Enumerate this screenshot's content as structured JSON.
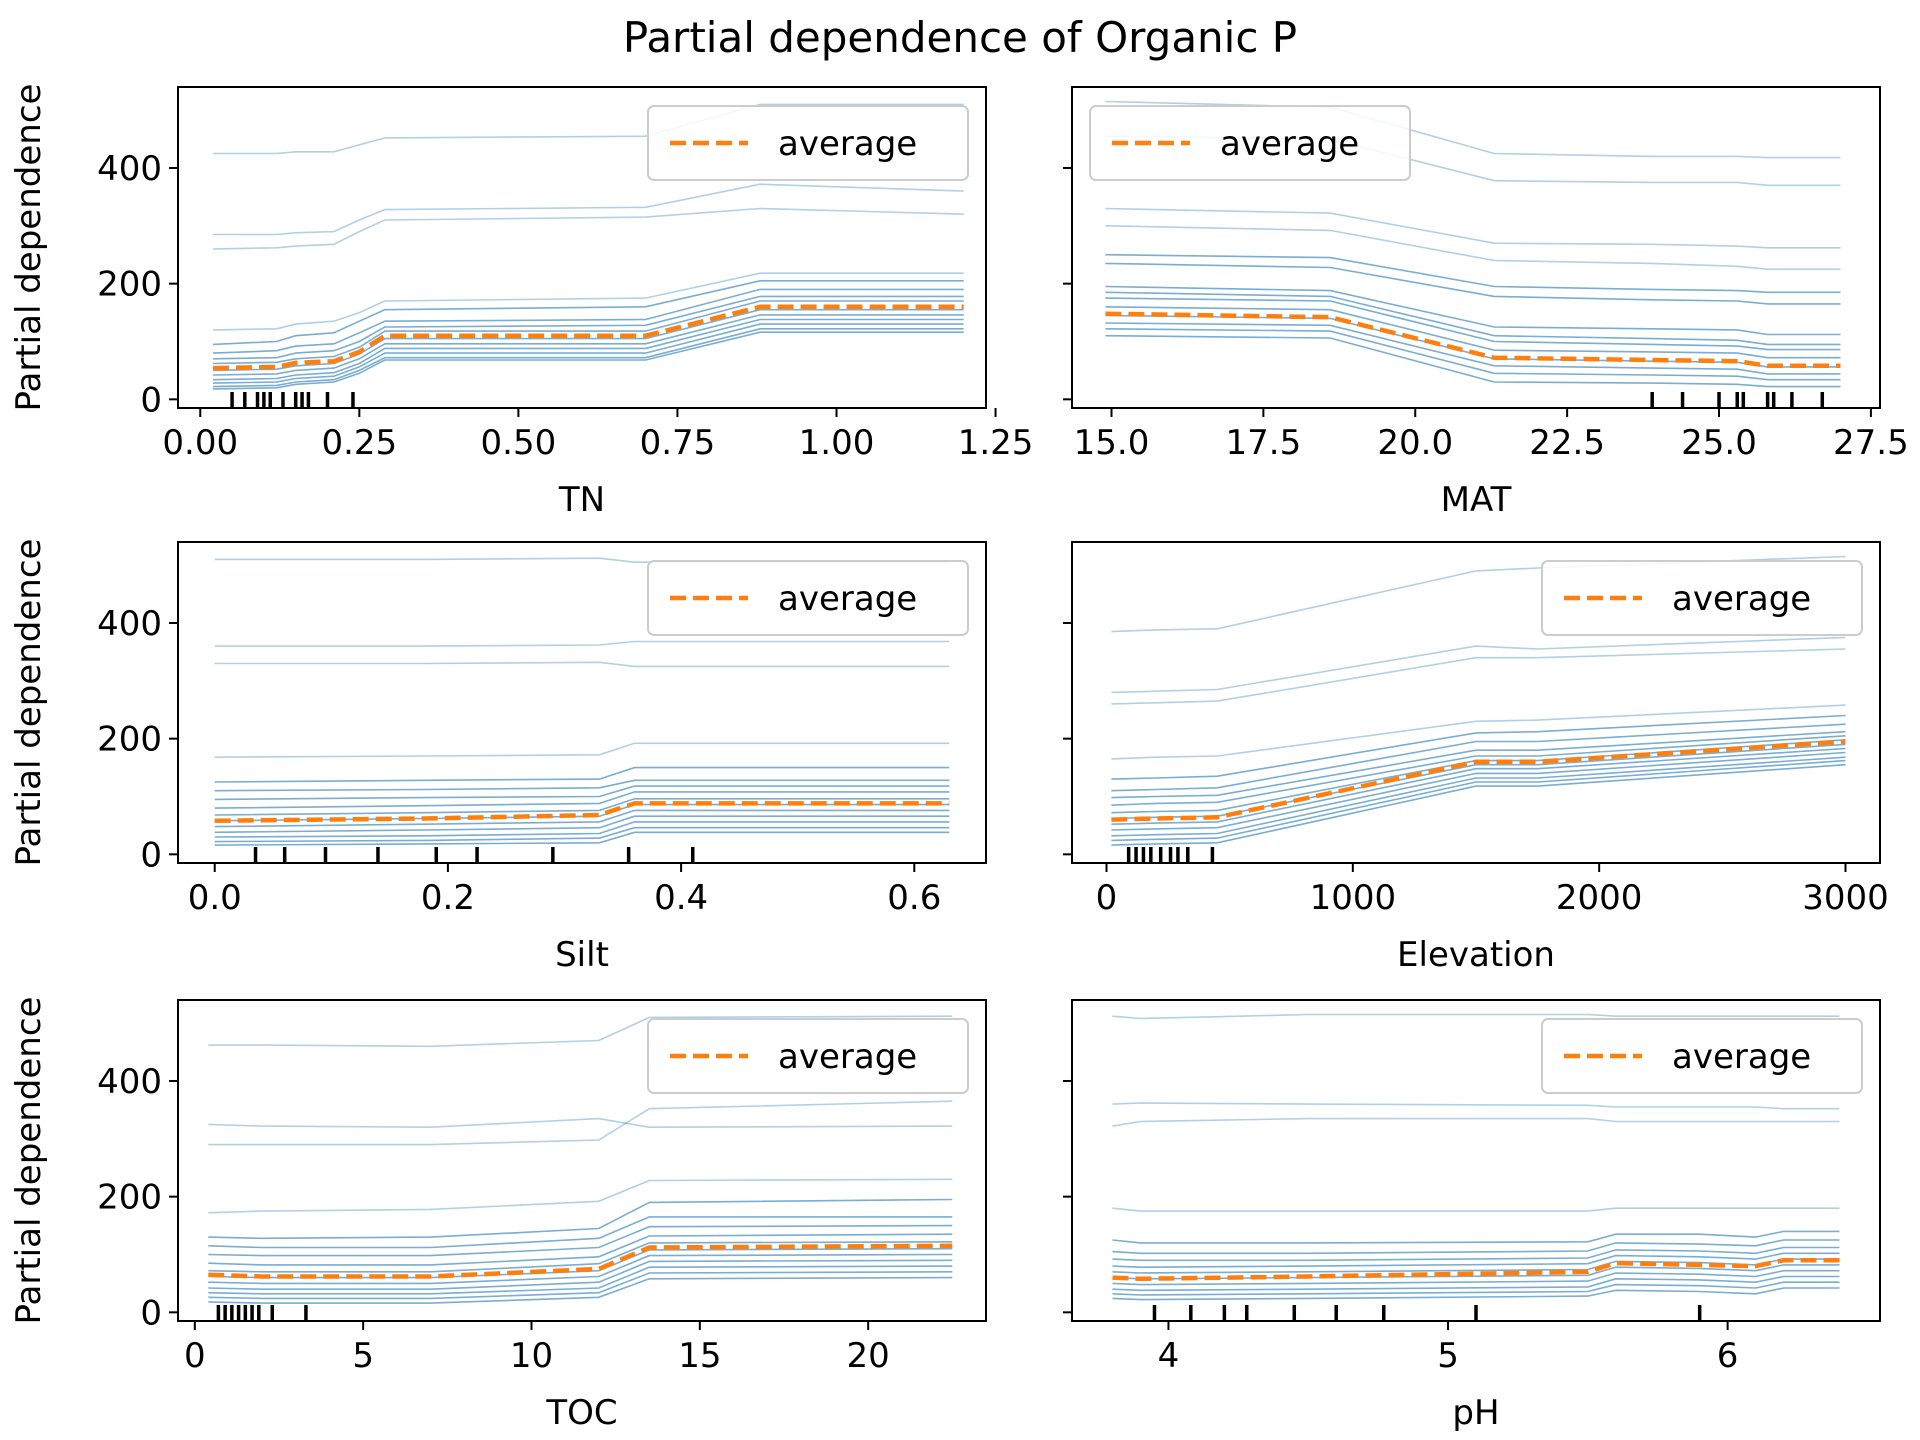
{
  "title": "Partial dependence of Organic P",
  "colors": {
    "ice": "#1f77b4",
    "average": "#ff7f0e",
    "rug": "#000000",
    "axes": "#000000"
  },
  "chart_data": [
    {
      "type": "line",
      "xlabel": "TN",
      "ylabel": "Partial dependence",
      "xlim": [
        -0.035,
        1.235
      ],
      "ylim": [
        -15,
        540
      ],
      "xticks": [
        0.0,
        0.25,
        0.5,
        0.75,
        1.0,
        1.25
      ],
      "xtick_labels": [
        "0.00",
        "0.25",
        "0.50",
        "0.75",
        "1.00",
        "1.25"
      ],
      "yticks": [
        0,
        200,
        400
      ],
      "ytick_labels": [
        "0",
        "200",
        "400"
      ],
      "legend": {
        "label": "average",
        "loc": "upper right"
      },
      "x": [
        0.02,
        0.12,
        0.15,
        0.21,
        0.25,
        0.29,
        0.7,
        0.88,
        1.2
      ],
      "average": [
        54,
        56,
        63,
        66,
        82,
        110,
        110,
        160,
        160
      ],
      "ice_lines": [
        [
          425,
          425,
          428,
          428,
          440,
          452,
          455,
          510,
          510
        ],
        [
          285,
          285,
          288,
          290,
          310,
          328,
          332,
          372,
          360
        ],
        [
          260,
          262,
          265,
          268,
          290,
          310,
          315,
          330,
          320
        ],
        [
          120,
          122,
          130,
          135,
          150,
          170,
          175,
          218,
          218
        ],
        [
          95,
          100,
          110,
          115,
          135,
          155,
          160,
          205,
          205
        ],
        [
          80,
          84,
          92,
          96,
          115,
          135,
          138,
          190,
          190
        ],
        [
          70,
          72,
          80,
          84,
          100,
          125,
          128,
          178,
          178
        ],
        [
          62,
          64,
          70,
          74,
          90,
          118,
          118,
          170,
          170
        ],
        [
          50,
          52,
          58,
          62,
          78,
          105,
          105,
          155,
          155
        ],
        [
          42,
          44,
          50,
          54,
          70,
          96,
          96,
          146,
          146
        ],
        [
          34,
          36,
          42,
          46,
          62,
          88,
          88,
          138,
          138
        ],
        [
          28,
          30,
          36,
          40,
          56,
          80,
          80,
          130,
          130
        ],
        [
          22,
          24,
          30,
          34,
          50,
          72,
          72,
          122,
          122
        ],
        [
          18,
          20,
          26,
          30,
          45,
          68,
          68,
          116,
          116
        ]
      ],
      "rug": [
        0.05,
        0.07,
        0.09,
        0.1,
        0.11,
        0.13,
        0.15,
        0.16,
        0.17,
        0.2,
        0.24
      ]
    },
    {
      "type": "line",
      "xlabel": "MAT",
      "ylabel": "",
      "xlim": [
        14.35,
        27.65
      ],
      "ylim": [
        -15,
        540
      ],
      "xticks": [
        15.0,
        17.5,
        20.0,
        22.5,
        25.0,
        27.5
      ],
      "xtick_labels": [
        "15.0",
        "17.5",
        "20.0",
        "22.5",
        "25.0",
        "27.5"
      ],
      "yticks": [
        0,
        200,
        400
      ],
      "ytick_labels": [
        "",
        "",
        ""
      ],
      "legend": {
        "label": "average",
        "loc": "upper left"
      },
      "x": [
        14.9,
        18.6,
        21.3,
        23.9,
        25.3,
        25.8,
        27.0
      ],
      "average": [
        148,
        142,
        72,
        68,
        66,
        58,
        58
      ],
      "ice_lines": [
        [
          515,
          505,
          425,
          420,
          420,
          418,
          418
        ],
        [
          455,
          450,
          378,
          375,
          375,
          370,
          370
        ],
        [
          330,
          322,
          270,
          268,
          265,
          262,
          262
        ],
        [
          300,
          292,
          240,
          235,
          230,
          225,
          225
        ],
        [
          250,
          245,
          195,
          190,
          188,
          185,
          185
        ],
        [
          235,
          228,
          178,
          172,
          170,
          165,
          165
        ],
        [
          195,
          188,
          125,
          122,
          120,
          112,
          112
        ],
        [
          185,
          178,
          110,
          105,
          102,
          95,
          95
        ],
        [
          175,
          170,
          100,
          95,
          92,
          86,
          86
        ],
        [
          160,
          155,
          85,
          82,
          80,
          72,
          72
        ],
        [
          145,
          140,
          70,
          66,
          64,
          56,
          56
        ],
        [
          132,
          128,
          58,
          54,
          52,
          44,
          44
        ],
        [
          122,
          118,
          45,
          42,
          40,
          34,
          34
        ],
        [
          110,
          106,
          30,
          28,
          26,
          22,
          22
        ]
      ],
      "rug": [
        23.9,
        24.4,
        25.0,
        25.3,
        25.4,
        25.8,
        25.9,
        26.2,
        26.7
      ]
    },
    {
      "type": "line",
      "xlabel": "Silt",
      "ylabel": "Partial dependence",
      "xlim": [
        -0.0315,
        0.6615
      ],
      "ylim": [
        -15,
        540
      ],
      "xticks": [
        0.0,
        0.2,
        0.4,
        0.6
      ],
      "xtick_labels": [
        "0.0",
        "0.2",
        "0.4",
        "0.6"
      ],
      "yticks": [
        0,
        200,
        400
      ],
      "ytick_labels": [
        "0",
        "200",
        "400"
      ],
      "legend": {
        "label": "average",
        "loc": "upper right"
      },
      "x": [
        0.0,
        0.18,
        0.33,
        0.36,
        0.63
      ],
      "average": [
        58,
        62,
        68,
        88,
        88
      ],
      "ice_lines": [
        [
          510,
          510,
          512,
          505,
          505
        ],
        [
          360,
          360,
          362,
          368,
          368
        ],
        [
          330,
          330,
          332,
          325,
          325
        ],
        [
          168,
          170,
          172,
          192,
          192
        ],
        [
          125,
          128,
          130,
          150,
          150
        ],
        [
          110,
          112,
          115,
          128,
          128
        ],
        [
          95,
          98,
          100,
          118,
          118
        ],
        [
          80,
          84,
          88,
          108,
          108
        ],
        [
          68,
          72,
          76,
          96,
          96
        ],
        [
          58,
          62,
          66,
          86,
          86
        ],
        [
          48,
          52,
          56,
          76,
          76
        ],
        [
          38,
          42,
          46,
          66,
          66
        ],
        [
          30,
          32,
          36,
          56,
          56
        ],
        [
          22,
          24,
          28,
          46,
          46
        ],
        [
          16,
          18,
          20,
          38,
          38
        ]
      ],
      "rug": [
        0.035,
        0.06,
        0.095,
        0.14,
        0.19,
        0.225,
        0.29,
        0.355,
        0.41
      ]
    },
    {
      "type": "line",
      "xlabel": "Elevation",
      "ylabel": "",
      "xlim": [
        -140,
        3140
      ],
      "ylim": [
        -15,
        540
      ],
      "xticks": [
        0,
        1000,
        2000,
        3000
      ],
      "xtick_labels": [
        "0",
        "1000",
        "2000",
        "3000"
      ],
      "yticks": [
        0,
        200,
        400
      ],
      "ytick_labels": [
        "",
        "",
        ""
      ],
      "legend": {
        "label": "average",
        "loc": "upper right"
      },
      "x": [
        20,
        200,
        450,
        1500,
        1750,
        3000
      ],
      "average": [
        60,
        62,
        64,
        160,
        160,
        195
      ],
      "ice_lines": [
        [
          385,
          388,
          390,
          490,
          495,
          515
        ],
        [
          280,
          282,
          285,
          360,
          355,
          375
        ],
        [
          260,
          262,
          265,
          340,
          340,
          355
        ],
        [
          165,
          168,
          170,
          230,
          232,
          258
        ],
        [
          130,
          132,
          135,
          210,
          212,
          240
        ],
        [
          110,
          112,
          115,
          195,
          195,
          225
        ],
        [
          98,
          100,
          102,
          180,
          180,
          212
        ],
        [
          85,
          88,
          90,
          170,
          170,
          205
        ],
        [
          72,
          74,
          76,
          162,
          162,
          198
        ],
        [
          62,
          64,
          66,
          155,
          155,
          190
        ],
        [
          52,
          54,
          56,
          148,
          148,
          183
        ],
        [
          42,
          44,
          46,
          140,
          140,
          176
        ],
        [
          32,
          34,
          36,
          132,
          132,
          168
        ],
        [
          24,
          26,
          28,
          125,
          125,
          162
        ],
        [
          16,
          18,
          20,
          118,
          118,
          155
        ]
      ],
      "rug": [
        90,
        120,
        150,
        180,
        220,
        260,
        290,
        330,
        430
      ]
    },
    {
      "type": "line",
      "xlabel": "TOC",
      "ylabel": "Partial dependence",
      "xlim": [
        -0.5,
        23.5
      ],
      "ylim": [
        -15,
        540
      ],
      "xticks": [
        0,
        5,
        10,
        15,
        20
      ],
      "xtick_labels": [
        "0",
        "5",
        "10",
        "15",
        "20"
      ],
      "yticks": [
        0,
        200,
        400
      ],
      "ytick_labels": [
        "0",
        "200",
        "400"
      ],
      "legend": {
        "label": "average",
        "loc": "upper right"
      },
      "x": [
        0.4,
        2.0,
        7.0,
        12.0,
        13.5,
        22.5
      ],
      "average": [
        65,
        62,
        62,
        75,
        112,
        115
      ],
      "ice_lines": [
        [
          462,
          462,
          460,
          470,
          510,
          512
        ],
        [
          325,
          322,
          320,
          335,
          320,
          322
        ],
        [
          290,
          290,
          290,
          298,
          352,
          365
        ],
        [
          172,
          175,
          178,
          192,
          228,
          230
        ],
        [
          130,
          128,
          130,
          145,
          190,
          195
        ],
        [
          115,
          112,
          112,
          128,
          165,
          165
        ],
        [
          100,
          98,
          98,
          112,
          148,
          150
        ],
        [
          85,
          82,
          82,
          96,
          132,
          135
        ],
        [
          72,
          70,
          70,
          84,
          120,
          122
        ],
        [
          62,
          60,
          60,
          72,
          108,
          110
        ],
        [
          52,
          50,
          50,
          62,
          98,
          100
        ],
        [
          42,
          40,
          40,
          52,
          88,
          90
        ],
        [
          34,
          32,
          32,
          42,
          78,
          80
        ],
        [
          26,
          24,
          24,
          34,
          68,
          70
        ],
        [
          18,
          16,
          16,
          26,
          58,
          60
        ]
      ],
      "rug": [
        0.7,
        0.9,
        1.1,
        1.3,
        1.5,
        1.7,
        1.9,
        2.3,
        3.3
      ]
    },
    {
      "type": "line",
      "xlabel": "pH",
      "ylabel": "",
      "xlim": [
        3.655,
        6.545
      ],
      "ylim": [
        -15,
        540
      ],
      "xticks": [
        4,
        5,
        6
      ],
      "xtick_labels": [
        "4",
        "5",
        "6"
      ],
      "yticks": [
        0,
        200,
        400
      ],
      "ytick_labels": [
        "",
        "",
        ""
      ],
      "legend": {
        "label": "average",
        "loc": "upper right"
      },
      "x": [
        3.8,
        3.9,
        4.5,
        5.5,
        5.6,
        5.9,
        6.1,
        6.2,
        6.4
      ],
      "average": [
        60,
        58,
        62,
        70,
        85,
        82,
        80,
        90,
        90
      ],
      "ice_lines": [
        [
          512,
          508,
          515,
          515,
          512,
          512,
          512,
          512,
          512
        ],
        [
          360,
          362,
          360,
          358,
          355,
          355,
          355,
          352,
          352
        ],
        [
          322,
          330,
          335,
          335,
          330,
          330,
          330,
          330,
          330
        ],
        [
          180,
          175,
          175,
          175,
          180,
          180,
          180,
          180,
          180
        ],
        [
          125,
          120,
          120,
          122,
          135,
          135,
          130,
          140,
          140
        ],
        [
          105,
          102,
          102,
          106,
          120,
          118,
          115,
          125,
          125
        ],
        [
          92,
          90,
          90,
          94,
          108,
          106,
          102,
          112,
          112
        ],
        [
          80,
          78,
          80,
          84,
          98,
          96,
          92,
          102,
          102
        ],
        [
          70,
          68,
          70,
          74,
          88,
          86,
          82,
          92,
          92
        ],
        [
          60,
          58,
          60,
          64,
          78,
          76,
          72,
          82,
          82
        ],
        [
          50,
          48,
          50,
          54,
          68,
          66,
          62,
          72,
          72
        ],
        [
          40,
          38,
          40,
          44,
          58,
          56,
          52,
          62,
          62
        ],
        [
          32,
          30,
          32,
          36,
          48,
          46,
          42,
          52,
          52
        ],
        [
          24,
          22,
          24,
          28,
          38,
          36,
          32,
          42,
          42
        ]
      ],
      "rug": [
        3.95,
        4.08,
        4.2,
        4.28,
        4.45,
        4.6,
        4.77,
        5.1,
        5.9
      ]
    }
  ]
}
